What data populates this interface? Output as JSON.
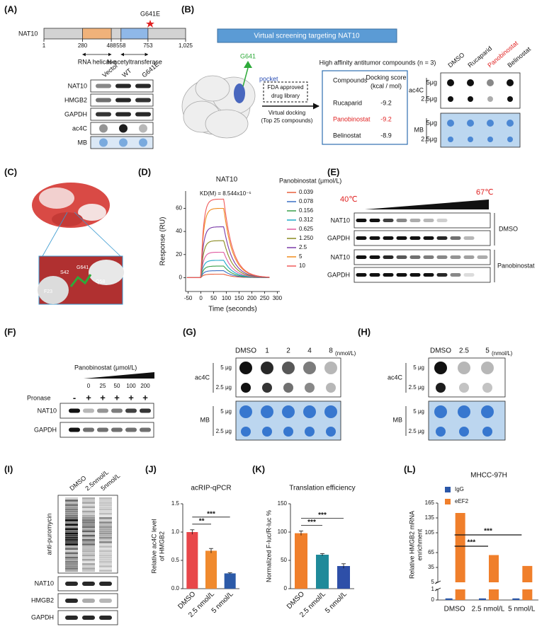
{
  "panels": {
    "A": {
      "label": "(A)",
      "protein": "NAT10",
      "mutation": "G641E",
      "positions": [
        1,
        280,
        488,
        558,
        753,
        {
          "value": 1025,
          "label": "1,025"
        }
      ],
      "domains": [
        "RNA helicase",
        "N-acetyltransferase"
      ],
      "lanes": [
        "Vector",
        "WT",
        "G641E"
      ],
      "rows": [
        "NAT10",
        "HMGB2",
        "GAPDH",
        "ac4C",
        "MB"
      ]
    },
    "B": {
      "label": "(B)",
      "banner": "Virtual screening targeting NAT10",
      "site": "G641",
      "pocket": "pocket",
      "library": [
        "FDA approved",
        "drug library"
      ],
      "docking": [
        "Virtual docking",
        "(Top 25 compounds)"
      ],
      "heading": "High affinity antitumor compounds (n = 3)",
      "table": {
        "header": [
          "Compounds",
          "Docking score",
          "(kcal / mol)"
        ],
        "rows": [
          [
            "Rucaparid",
            -9.2
          ],
          [
            "Panobinostat",
            -9.2
          ],
          [
            "Belinostat",
            -8.9
          ]
        ]
      },
      "lanes": [
        "DMSO",
        "Rucaparid",
        "Panobinostat",
        "Belinostat"
      ],
      "rows": [
        "ac4C",
        "MB"
      ],
      "amounts": [
        "5μg",
        "2.5μg"
      ]
    },
    "C": {
      "label": "(C)",
      "residues": [
        "S42",
        "G641",
        "Q58",
        "F23"
      ]
    },
    "D": {
      "label": "(D)",
      "type": "line",
      "title": "NAT10",
      "kd": "KD(M) = 8.544x10⁻⁶",
      "xlabel": "Time (seconds)",
      "ylabel": "Response (RU)",
      "xlim": [
        -60,
        310
      ],
      "xticks": [
        -50,
        0,
        50,
        100,
        150,
        200,
        250,
        300
      ],
      "ylim": [
        -12,
        75
      ],
      "yticks": [
        0,
        20,
        40,
        60
      ],
      "legend_title": "Panobinostat  (μmol/L)",
      "series": [
        {
          "name": "0.039",
          "color": "#e8603c",
          "plateau": 3
        },
        {
          "name": "0.078",
          "color": "#3a6fc4",
          "plateau": 6
        },
        {
          "name": "0.156",
          "color": "#3aa04a",
          "plateau": 10
        },
        {
          "name": "0.312",
          "color": "#1fa8c9",
          "plateau": 15
        },
        {
          "name": "0.625",
          "color": "#e05aa0",
          "plateau": 22
        },
        {
          "name": "1.250",
          "color": "#8a8a20",
          "plateau": 32
        },
        {
          "name": "2.5",
          "color": "#7a3aa8",
          "plateau": 44
        },
        {
          "name": "5",
          "color": "#f08c1e",
          "plateau": 60
        },
        {
          "name": "10",
          "color": "#f05a5a",
          "plateau": 68
        }
      ]
    },
    "E": {
      "label": "(E)",
      "temps": [
        "40℃",
        "67℃"
      ],
      "rows": [
        "NAT10",
        "GAPDH",
        "NAT10",
        "GAPDH"
      ],
      "groups": [
        "DMSO",
        "Panobinostat"
      ]
    },
    "F": {
      "label": "(F)",
      "treatment": "Panobinostat  (μmol/L)",
      "doses": [
        0,
        25,
        50,
        100,
        200
      ],
      "pronase_label": "Pronase",
      "pronase": [
        "-",
        "+",
        "+",
        "+",
        "+",
        "+"
      ],
      "rows": [
        "NAT10",
        "GAPDH"
      ]
    },
    "G": {
      "label": "(G)",
      "lanes": [
        "DMSO",
        1,
        2,
        4,
        8
      ],
      "unit": "(nmol/L)",
      "rows": [
        "ac4C",
        "MB"
      ],
      "amounts": [
        "5 μg",
        "2.5 μg"
      ]
    },
    "H": {
      "label": "(H)",
      "lanes": [
        "DMSO",
        2.5,
        5
      ],
      "unit": "(nmol/L)",
      "rows": [
        "ac4C",
        "MB"
      ],
      "amounts": [
        "5 μg",
        "2.5 μg"
      ]
    },
    "I": {
      "label": "(I)",
      "lanes": [
        "DMSO",
        "2.5nmol/L",
        "5nmol/L"
      ],
      "antibody": "anti-puromycin",
      "rows": [
        "NAT10",
        "HMGB2",
        "GAPDH"
      ]
    },
    "J": {
      "label": "(J)",
      "type": "bar",
      "title": "acRIP-qPCR",
      "ylabel": [
        "Relative ac4C level",
        "of HMGB2"
      ],
      "categories": [
        "DMSO",
        "2.5 nmol/L",
        "5 nmol/L"
      ],
      "values": [
        1.0,
        0.67,
        0.27
      ],
      "errors": [
        0.04,
        0.04,
        0.01
      ],
      "colors": [
        "#e8474a",
        "#f08a2e",
        "#2c5aa8"
      ],
      "ylim": [
        0,
        1.5
      ],
      "yticks": [
        {
          "value": 0,
          "label": "0.0"
        },
        {
          "value": 0.5,
          "label": "0.5"
        },
        {
          "value": 1,
          "label": "1.0"
        },
        {
          "value": 1.5,
          "label": "1.5"
        }
      ],
      "significance": [
        "**",
        "***"
      ]
    },
    "K": {
      "label": "(K)",
      "type": "bar",
      "title": "Translation efficiency",
      "ylabel": [
        "Normalized F-luc/R-luc %"
      ],
      "categories": [
        "DMSO",
        "2.5 nmol/L",
        "5 nmol/L"
      ],
      "values": [
        98,
        60,
        40
      ],
      "errors": [
        4,
        2,
        4
      ],
      "colors": [
        "#f07f2b",
        "#1f8a9a",
        "#2e4fa8"
      ],
      "ylim": [
        0,
        150
      ],
      "yticks": [
        0,
        50,
        100,
        150
      ],
      "significance": [
        "***",
        "***"
      ]
    },
    "L": {
      "label": "(L)",
      "type": "bar",
      "title": "MHCC-97H",
      "ylabel": [
        "Relative HMGB2 mRNA",
        "enrichment"
      ],
      "categories": [
        "DMSO",
        "2.5 nmol/L",
        "5 nmol/L"
      ],
      "series": [
        {
          "name": "IgG",
          "color": "#2b57a8",
          "values": [
            0.15,
            0.15,
            0.15
          ]
        },
        {
          "name": "eEF2",
          "color": "#f07f2b",
          "values": [
            145,
            60,
            38
          ]
        }
      ],
      "ylim": [
        0,
        165
      ],
      "axis_break": [
        1,
        5
      ],
      "yticks": [
        0,
        1,
        5,
        35,
        65,
        105,
        135,
        165
      ],
      "significance": [
        "***",
        "***"
      ]
    }
  }
}
